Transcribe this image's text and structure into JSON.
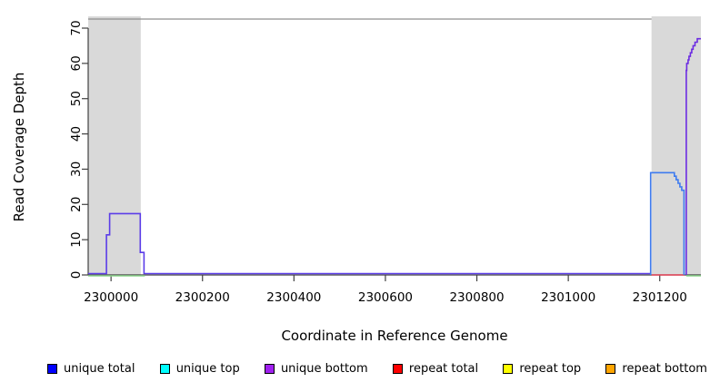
{
  "chart_data": {
    "type": "line",
    "title": "",
    "xlabel": "Coordinate in Reference Genome",
    "ylabel": "Read Coverage Depth",
    "xlim": [
      2299950,
      2301290
    ],
    "ylim": [
      0,
      70
    ],
    "x_ticks": [
      2300000,
      2300200,
      2300400,
      2300600,
      2300800,
      2301000,
      2301200
    ],
    "y_ticks": [
      0,
      10,
      20,
      30,
      40,
      50,
      60,
      70
    ],
    "grid": "off",
    "background_color": "#ffffff",
    "shaded_region_color": "#d9d9d9",
    "shaded_regions": [
      {
        "name": "left-highlight",
        "x0": 2299950,
        "x1": 2300065
      },
      {
        "name": "right-highlight",
        "x0": 2301182,
        "x1": 2301290
      }
    ],
    "series": [
      {
        "name": "repeat-top-bottom-baseline-left",
        "color": "#8fd98f",
        "width": 1.5,
        "dy": 1,
        "points": [
          [
            2299950,
            0
          ],
          [
            2300074,
            0
          ]
        ]
      },
      {
        "name": "repeat-top-bottom-baseline-right",
        "color": "#8fd98f",
        "width": 1.5,
        "dy": 1,
        "points": [
          [
            2301258,
            0
          ],
          [
            2301290,
            0
          ]
        ]
      },
      {
        "name": "repeat-total-baseline",
        "color": "#e8455a",
        "width": 1.5,
        "dy": 0,
        "points": [
          [
            2301182,
            0
          ],
          [
            2301254,
            0
          ]
        ]
      },
      {
        "name": "unique-total-and-bottom-left-peak",
        "color": "#5b3de8",
        "width": 1.6,
        "dy": -1.5,
        "points": [
          [
            2299950,
            0
          ],
          [
            2299990,
            0
          ],
          [
            2299990,
            11
          ],
          [
            2299997,
            11
          ],
          [
            2299997,
            17
          ],
          [
            2300064,
            17
          ],
          [
            2300064,
            6
          ],
          [
            2300072,
            6
          ],
          [
            2300072,
            0
          ],
          [
            2301180,
            0
          ]
        ]
      },
      {
        "name": "unique-total-and-top-right-step",
        "color": "#3e7bf0",
        "width": 1.6,
        "dy": 0,
        "points": [
          [
            2301180,
            0
          ],
          [
            2301180,
            29
          ],
          [
            2301232,
            29
          ],
          [
            2301232,
            28
          ],
          [
            2301236,
            28
          ],
          [
            2301236,
            27
          ],
          [
            2301240,
            27
          ],
          [
            2301240,
            26
          ],
          [
            2301244,
            26
          ],
          [
            2301244,
            25
          ],
          [
            2301248,
            25
          ],
          [
            2301248,
            24
          ],
          [
            2301253,
            24
          ],
          [
            2301253,
            0
          ]
        ]
      },
      {
        "name": "unique-bottom-right-staircase",
        "color": "#6c2be2",
        "width": 1.6,
        "dy": 0,
        "points": [
          [
            2301258,
            0
          ],
          [
            2301258,
            58
          ],
          [
            2301259,
            58
          ],
          [
            2301259,
            60
          ],
          [
            2301262,
            60
          ],
          [
            2301262,
            61
          ],
          [
            2301264,
            61
          ],
          [
            2301264,
            62
          ],
          [
            2301267,
            62
          ],
          [
            2301267,
            63
          ],
          [
            2301270,
            63
          ],
          [
            2301270,
            64
          ],
          [
            2301273,
            64
          ],
          [
            2301273,
            65
          ],
          [
            2301277,
            65
          ],
          [
            2301277,
            66
          ],
          [
            2301282,
            66
          ],
          [
            2301282,
            67
          ],
          [
            2301290,
            67
          ]
        ]
      }
    ],
    "legend_position": "bottom"
  },
  "axes": {
    "axis_color": "#404040",
    "top_border_color": "#8f8f8f"
  },
  "legend": {
    "items": [
      {
        "label": "unique total",
        "color": "#0000ff"
      },
      {
        "label": "unique top",
        "color": "#00ffff"
      },
      {
        "label": "unique bottom",
        "color": "#a020f0"
      },
      {
        "label": "repeat total",
        "color": "#ff0000"
      },
      {
        "label": "repeat top",
        "color": "#ffff00"
      },
      {
        "label": "repeat bottom",
        "color": "#ffa500"
      }
    ]
  }
}
